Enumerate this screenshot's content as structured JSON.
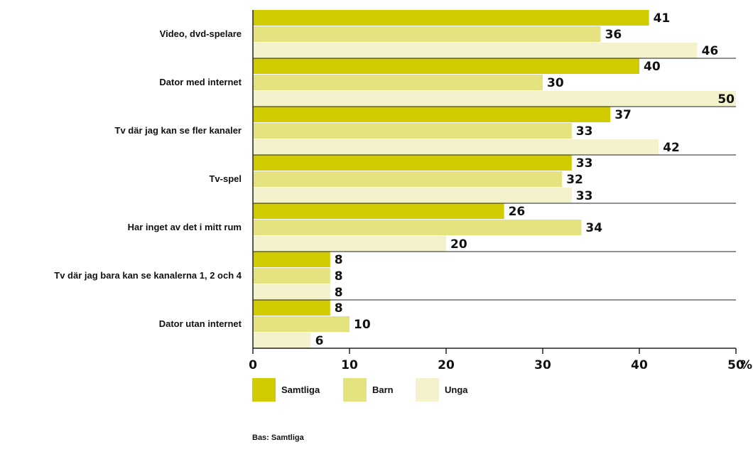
{
  "chart_data": {
    "type": "bar",
    "orientation": "horizontal",
    "categories": [
      "Video, dvd-spelare",
      "Dator med internet",
      "Tv där jag kan se fler kanaler",
      "Tv-spel",
      "Har inget av det i mitt rum",
      "Tv där jag bara kan se kanalerna 1, 2 och 4",
      "Dator utan internet"
    ],
    "series": [
      {
        "name": "Samtliga",
        "color": "#d1cc00",
        "values": [
          41,
          40,
          37,
          33,
          26,
          8,
          8
        ]
      },
      {
        "name": "Barn",
        "color": "#e5e37f",
        "values": [
          36,
          30,
          33,
          32,
          34,
          8,
          10
        ]
      },
      {
        "name": "Unga",
        "color": "#f3f2cd",
        "values": [
          46,
          50,
          42,
          33,
          20,
          8,
          6
        ]
      }
    ],
    "xticks": [
      0,
      10,
      20,
      30,
      40,
      50
    ],
    "xunit": "%",
    "xlim": [
      0,
      50
    ],
    "legend_position": "bottom"
  },
  "footnote": "Bas: Samtliga"
}
